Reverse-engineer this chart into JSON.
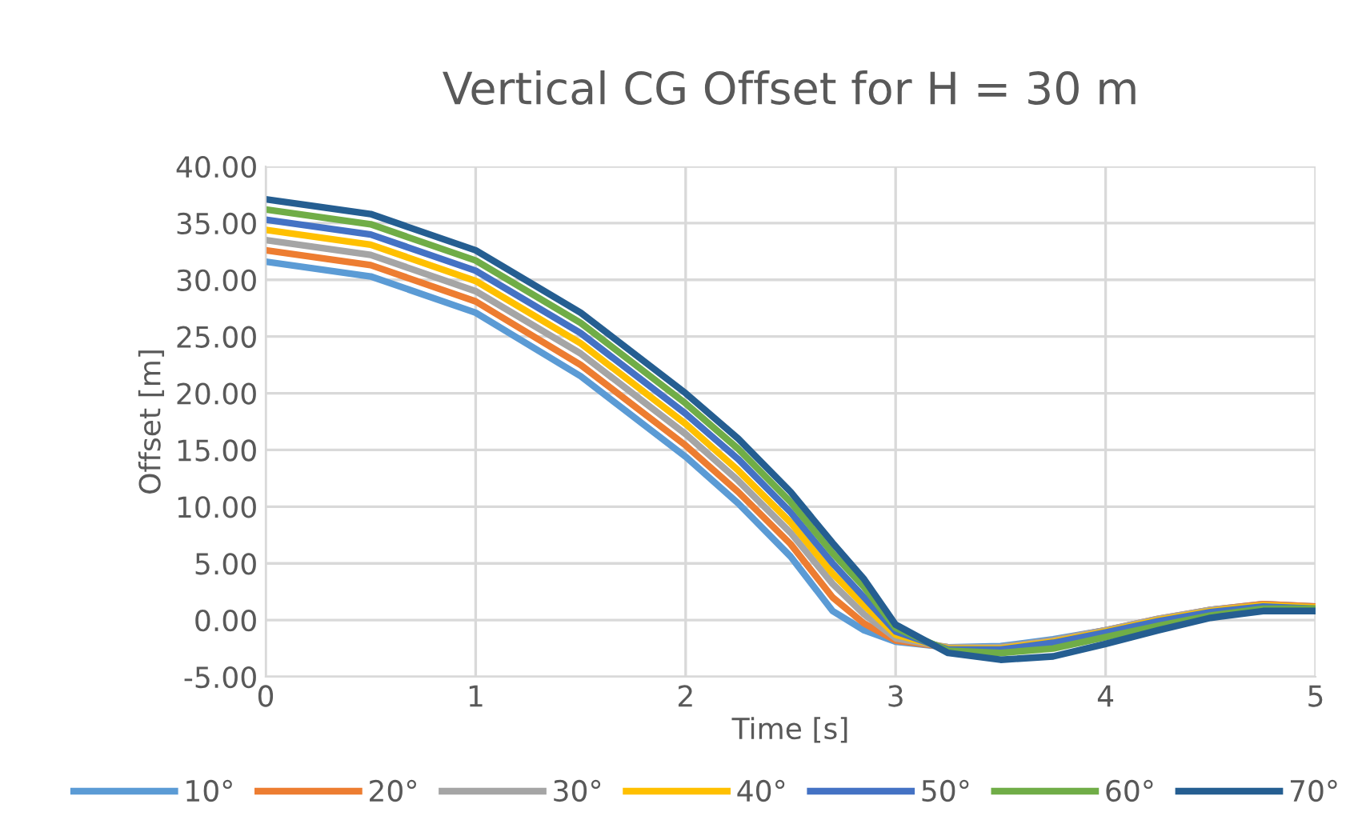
{
  "chart_data": {
    "type": "line",
    "title": "Vertical CG Offset for H = 30 m",
    "xlabel": "Time [s]",
    "ylabel": "Offset [m]",
    "x": [
      0,
      0.5,
      1,
      1.5,
      2,
      2.25,
      2.5,
      2.7,
      2.85,
      3,
      3.25,
      3.5,
      3.75,
      4,
      4.25,
      4.5,
      4.75,
      5
    ],
    "series": [
      {
        "name": "10°",
        "color": "#5b9bd5",
        "values": [
          31.6,
          30.3,
          27.1,
          21.5,
          14.4,
          10.3,
          5.6,
          0.8,
          -0.9,
          -1.9,
          -2.4,
          -2.3,
          -1.7,
          -0.9,
          0.0,
          0.9,
          1.4,
          1.2
        ]
      },
      {
        "name": "20°",
        "color": "#ed7d31",
        "values": [
          32.6,
          31.3,
          28.1,
          22.5,
          15.4,
          11.3,
          6.7,
          2.0,
          -0.3,
          -1.8,
          -2.4,
          -2.4,
          -1.8,
          -0.9,
          0.1,
          0.9,
          1.4,
          1.2
        ]
      },
      {
        "name": "30°",
        "color": "#a5a5a5",
        "values": [
          33.5,
          32.2,
          29.0,
          23.5,
          16.4,
          12.3,
          7.7,
          3.2,
          0.5,
          -1.6,
          -2.4,
          -2.4,
          -1.8,
          -0.9,
          0.1,
          0.9,
          1.3,
          1.1
        ]
      },
      {
        "name": "40°",
        "color": "#ffc000",
        "values": [
          34.4,
          33.1,
          29.9,
          24.4,
          17.3,
          13.2,
          8.6,
          4.1,
          1.3,
          -1.3,
          -2.5,
          -2.5,
          -1.9,
          -1.0,
          0.0,
          0.8,
          1.3,
          1.1
        ]
      },
      {
        "name": "50°",
        "color": "#4472c4",
        "values": [
          35.3,
          34.0,
          30.8,
          25.3,
          18.2,
          14.2,
          9.5,
          5.0,
          2.0,
          -1.0,
          -2.6,
          -2.6,
          -2.0,
          -1.1,
          -0.1,
          0.7,
          1.2,
          1.0
        ]
      },
      {
        "name": "60°",
        "color": "#70ad47",
        "values": [
          36.2,
          34.9,
          31.7,
          26.2,
          19.1,
          15.1,
          10.4,
          5.9,
          2.9,
          -0.7,
          -2.7,
          -2.9,
          -2.5,
          -1.5,
          -0.5,
          0.4,
          1.0,
          1.0
        ]
      },
      {
        "name": "70°",
        "color": "#255e91",
        "values": [
          37.1,
          35.8,
          32.6,
          27.1,
          20.0,
          16.0,
          11.3,
          6.8,
          3.6,
          -0.4,
          -2.9,
          -3.5,
          -3.2,
          -2.1,
          -0.9,
          0.2,
          0.8,
          0.8
        ]
      }
    ],
    "xlim": [
      0,
      5
    ],
    "xticks": [
      0,
      1,
      2,
      3,
      4,
      5
    ],
    "ylim": [
      -5,
      40
    ],
    "yticks": [
      {
        "value": -5,
        "label": "-5.00"
      },
      {
        "value": 0,
        "label": "0.00"
      },
      {
        "value": 5,
        "label": "5.00"
      },
      {
        "value": 10,
        "label": "10.00"
      },
      {
        "value": 15,
        "label": "15.00"
      },
      {
        "value": 20,
        "label": "20.00"
      },
      {
        "value": 25,
        "label": "25.00"
      },
      {
        "value": 30,
        "label": "30.00"
      },
      {
        "value": 35,
        "label": "35.00"
      },
      {
        "value": 40,
        "label": "40.00"
      }
    ],
    "grid": true,
    "legend": "bottom",
    "marker": "none",
    "line_style": "solid"
  }
}
